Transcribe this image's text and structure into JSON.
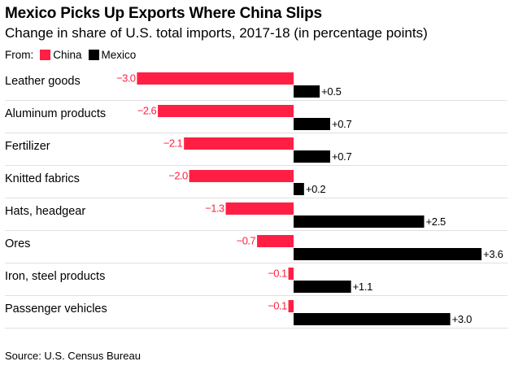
{
  "title": "Mexico Picks Up Exports Where China Slips",
  "subtitle": "Change in share of U.S. total imports, 2017-18 (in percentage points)",
  "legend": {
    "prefix": "From:",
    "china_label": "China",
    "mexico_label": "Mexico"
  },
  "colors": {
    "china": "#ff1f44",
    "mexico": "#000000",
    "separator": "#e0e0e0"
  },
  "source": "Source: U.S. Census Bureau",
  "chart_data": {
    "type": "bar",
    "orientation": "horizontal",
    "categories": [
      "Leather goods",
      "Aluminum products",
      "Fertilizer",
      "Knitted fabrics",
      "Hats, headgear",
      "Ores",
      "Iron, steel products",
      "Passenger vehicles"
    ],
    "series": [
      {
        "name": "China",
        "values": [
          -3.0,
          -2.6,
          -2.1,
          -2.0,
          -1.3,
          -0.7,
          -0.1,
          -0.1
        ],
        "labels": [
          "−3.0",
          "−2.6",
          "−2.1",
          "−2.0",
          "−1.3",
          "−0.7",
          "−0.1",
          "−0.1"
        ]
      },
      {
        "name": "Mexico",
        "values": [
          0.5,
          0.7,
          0.7,
          0.2,
          2.5,
          3.6,
          1.1,
          3.0
        ],
        "labels": [
          "+0.5",
          "+0.7",
          "+0.7",
          "+0.2",
          "+2.5",
          "+3.6",
          "+1.1",
          "+3.0"
        ]
      }
    ],
    "xlim": [
      -3.0,
      3.6
    ],
    "grid": false,
    "legend_position": "top-left"
  }
}
